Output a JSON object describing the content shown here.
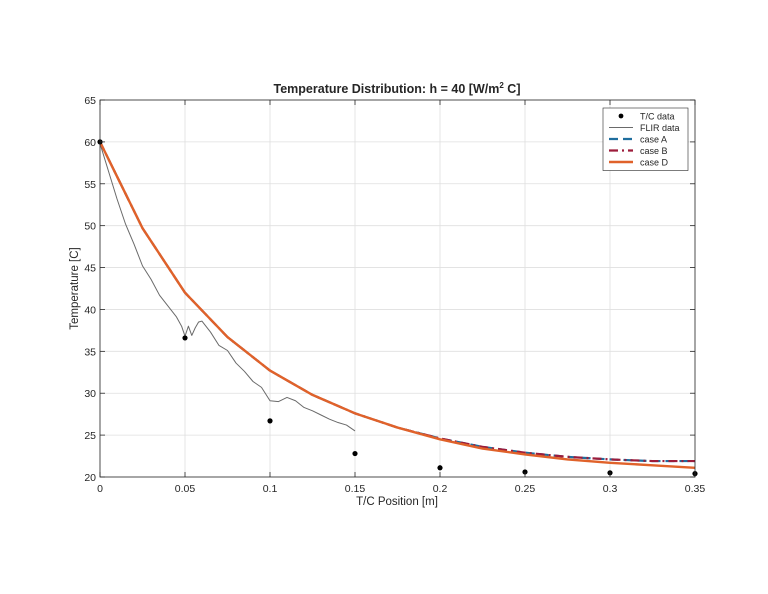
{
  "chart_data": {
    "type": "line",
    "title": "Temperature Distribution: h = 40 [W/m² C]",
    "title_parts": {
      "before": "Temperature Distribution: h = 40 [W/m",
      "superscript": "2",
      "after": " C]"
    },
    "xlabel": "T/C Position [m]",
    "ylabel": "Temperature [C]",
    "xlim": [
      0,
      0.35
    ],
    "ylim": [
      20,
      65
    ],
    "xticks": [
      0,
      0.05,
      0.1,
      0.15,
      0.2,
      0.25,
      0.3,
      0.35
    ],
    "xtick_labels": [
      "0",
      "0.05",
      "0.1",
      "0.15",
      "0.2",
      "0.25",
      "0.3",
      "0.35"
    ],
    "yticks": [
      20,
      25,
      30,
      35,
      40,
      45,
      50,
      55,
      60,
      65
    ],
    "ytick_labels": [
      "20",
      "25",
      "30",
      "35",
      "40",
      "45",
      "50",
      "55",
      "60",
      "65"
    ],
    "grid": true,
    "legend_position": "top-right",
    "series": [
      {
        "name": "T/C data",
        "style": "markers",
        "color": "#000000",
        "x": [
          0,
          0.05,
          0.1,
          0.15,
          0.2,
          0.25,
          0.3,
          0.35
        ],
        "y": [
          60.0,
          36.6,
          26.7,
          22.8,
          21.1,
          20.6,
          20.5,
          20.4
        ]
      },
      {
        "name": "FLIR data",
        "style": "thin-solid",
        "color": "#6a6a6a",
        "x": [
          0,
          0.005,
          0.01,
          0.015,
          0.02,
          0.025,
          0.03,
          0.035,
          0.04,
          0.045,
          0.048,
          0.05,
          0.052,
          0.054,
          0.056,
          0.058,
          0.06,
          0.065,
          0.07,
          0.075,
          0.08,
          0.085,
          0.09,
          0.095,
          0.1,
          0.105,
          0.11,
          0.115,
          0.12,
          0.125,
          0.13,
          0.135,
          0.14,
          0.145,
          0.15
        ],
        "y": [
          59.8,
          56.5,
          53.2,
          50.2,
          47.8,
          45.2,
          43.6,
          41.7,
          40.4,
          39.1,
          38.0,
          36.8,
          38.0,
          36.9,
          37.8,
          38.5,
          38.6,
          37.3,
          35.7,
          35.1,
          33.6,
          32.6,
          31.4,
          30.7,
          29.1,
          29.0,
          29.5,
          29.1,
          28.3,
          27.9,
          27.4,
          26.9,
          26.5,
          26.2,
          25.5
        ]
      },
      {
        "name": "case A",
        "style": "dashed",
        "color": "#1f6e9e",
        "x": [
          0,
          0.025,
          0.05,
          0.075,
          0.1,
          0.125,
          0.15,
          0.175,
          0.2,
          0.225,
          0.25,
          0.275,
          0.3,
          0.325,
          0.35
        ],
        "y": [
          60.0,
          49.7,
          42.0,
          36.7,
          32.7,
          29.8,
          27.6,
          25.9,
          24.6,
          23.6,
          22.9,
          22.4,
          22.1,
          21.9,
          21.9
        ]
      },
      {
        "name": "case B",
        "style": "dash-dot",
        "color": "#9c1c3b",
        "x": [
          0,
          0.025,
          0.05,
          0.075,
          0.1,
          0.125,
          0.15,
          0.175,
          0.2,
          0.225,
          0.25,
          0.275,
          0.3,
          0.325,
          0.35
        ],
        "y": [
          60.0,
          49.7,
          42.0,
          36.7,
          32.7,
          29.8,
          27.6,
          25.9,
          24.6,
          23.6,
          22.9,
          22.4,
          22.1,
          21.9,
          21.9
        ]
      },
      {
        "name": "case D",
        "style": "solid",
        "color": "#e0622a",
        "x": [
          0,
          0.025,
          0.05,
          0.075,
          0.1,
          0.125,
          0.15,
          0.175,
          0.2,
          0.225,
          0.25,
          0.275,
          0.3,
          0.325,
          0.35
        ],
        "y": [
          60.0,
          49.7,
          42.0,
          36.7,
          32.7,
          29.8,
          27.6,
          25.9,
          24.5,
          23.4,
          22.7,
          22.1,
          21.7,
          21.4,
          21.1
        ]
      }
    ]
  }
}
